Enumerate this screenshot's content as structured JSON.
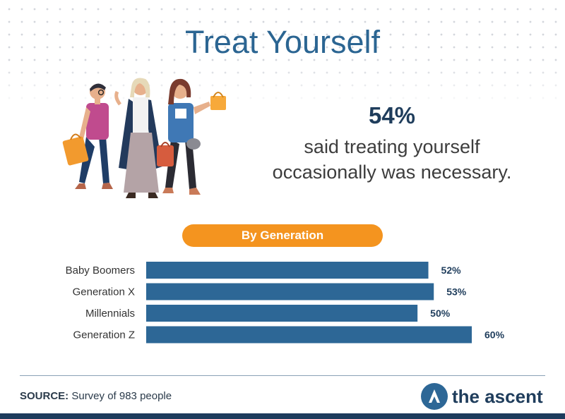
{
  "header": {
    "title": "Treat Yourself"
  },
  "stat": {
    "value": "54%",
    "text_line1": "said treating yourself",
    "text_line2": "occasionally was necessary."
  },
  "section_label": "By Generation",
  "chart_data": {
    "type": "bar",
    "orientation": "horizontal",
    "categories": [
      "Baby Boomers",
      "Generation X",
      "Millennials",
      "Generation Z"
    ],
    "values": [
      52,
      53,
      50,
      60
    ],
    "value_labels": [
      "52%",
      "53%",
      "50%",
      "60%"
    ],
    "xlim": [
      0,
      60
    ],
    "grid": false,
    "bar_color": "#2d6796"
  },
  "footer": {
    "source_label": "SOURCE:",
    "source_text": "Survey of 983 people",
    "brand_name": "the ascent"
  },
  "colors": {
    "title": "#2b6592",
    "accent_orange": "#f4941f",
    "navy": "#1d3b5c",
    "bar": "#2d6796"
  }
}
